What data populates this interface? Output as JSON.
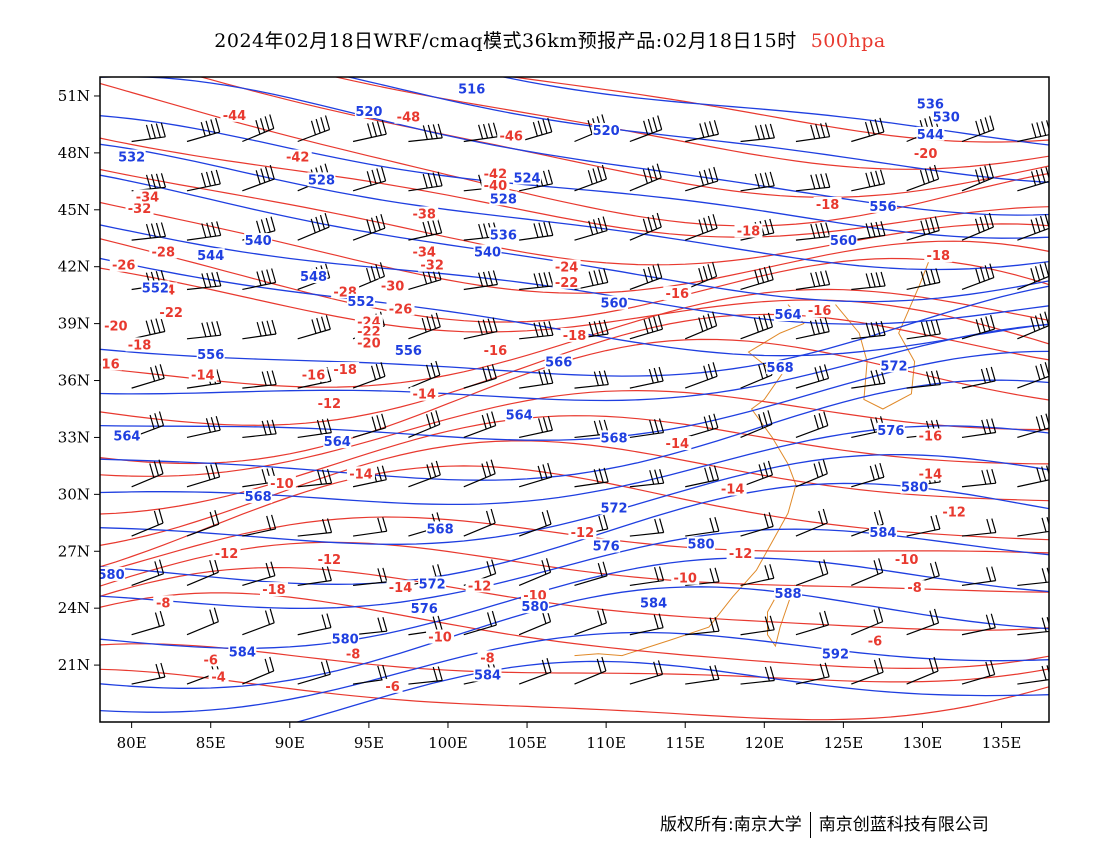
{
  "title": {
    "text": "2024年02月18日WRF/cmaq模式36km预报产品:02月18日15时",
    "level": "500hpa"
  },
  "footer": {
    "copyright": "版权所有:南京大学",
    "company": "南京创蓝科技有限公司"
  },
  "colors": {
    "height_contour": "#1f3fe0",
    "temperature_contour": "#e8392f",
    "coastline_border": "#e08a2a",
    "wind_barb": "#000000"
  },
  "map": {
    "projection": "lat-lon",
    "lon_range": [
      78,
      138
    ],
    "lat_range": [
      18,
      52
    ],
    "lon_ticks": [
      "80E",
      "85E",
      "90E",
      "95E",
      "100E",
      "105E",
      "110E",
      "115E",
      "120E",
      "125E",
      "130E",
      "135E"
    ],
    "lat_ticks": [
      "51N",
      "48N",
      "45N",
      "42N",
      "39N",
      "36N",
      "33N",
      "30N",
      "27N",
      "24N",
      "21N"
    ],
    "height_labels": [
      {
        "text": "516",
        "lon": 101.5,
        "lat": 51.3
      },
      {
        "text": "520",
        "lon": 95,
        "lat": 50.1
      },
      {
        "text": "520",
        "lon": 110,
        "lat": 49.1
      },
      {
        "text": "536",
        "lon": 130.5,
        "lat": 50.5
      },
      {
        "text": "530",
        "lon": 131.5,
        "lat": 49.8
      },
      {
        "text": "544",
        "lon": 130.5,
        "lat": 48.9
      },
      {
        "text": "532",
        "lon": 80,
        "lat": 47.7
      },
      {
        "text": "528",
        "lon": 92,
        "lat": 46.5
      },
      {
        "text": "524",
        "lon": 105,
        "lat": 46.6
      },
      {
        "text": "528",
        "lon": 103.5,
        "lat": 45.5
      },
      {
        "text": "556",
        "lon": 127.5,
        "lat": 45.1
      },
      {
        "text": "536",
        "lon": 103.5,
        "lat": 43.6
      },
      {
        "text": "540",
        "lon": 88,
        "lat": 43.3
      },
      {
        "text": "540",
        "lon": 102.5,
        "lat": 42.7
      },
      {
        "text": "560",
        "lon": 125,
        "lat": 43.3
      },
      {
        "text": "544",
        "lon": 85,
        "lat": 42.5
      },
      {
        "text": "548",
        "lon": 91.5,
        "lat": 41.4
      },
      {
        "text": "552",
        "lon": 81.5,
        "lat": 40.8
      },
      {
        "text": "552",
        "lon": 94.5,
        "lat": 40.1
      },
      {
        "text": "560",
        "lon": 110.5,
        "lat": 40.0
      },
      {
        "text": "564",
        "lon": 121.5,
        "lat": 39.4
      },
      {
        "text": "556",
        "lon": 85,
        "lat": 37.3
      },
      {
        "text": "556",
        "lon": 97.5,
        "lat": 37.5
      },
      {
        "text": "566",
        "lon": 107,
        "lat": 36.9
      },
      {
        "text": "568",
        "lon": 121,
        "lat": 36.6
      },
      {
        "text": "572",
        "lon": 128.2,
        "lat": 36.7
      },
      {
        "text": "564",
        "lon": 104.5,
        "lat": 34.1
      },
      {
        "text": "564",
        "lon": 79.7,
        "lat": 33.0
      },
      {
        "text": "564",
        "lon": 93,
        "lat": 32.7
      },
      {
        "text": "568",
        "lon": 110.5,
        "lat": 32.9
      },
      {
        "text": "576",
        "lon": 128,
        "lat": 33.3
      },
      {
        "text": "568",
        "lon": 88,
        "lat": 29.8
      },
      {
        "text": "580",
        "lon": 129.5,
        "lat": 30.3
      },
      {
        "text": "572",
        "lon": 110.5,
        "lat": 29.2
      },
      {
        "text": "568",
        "lon": 99.5,
        "lat": 28.1
      },
      {
        "text": "576",
        "lon": 110,
        "lat": 27.2
      },
      {
        "text": "580",
        "lon": 116,
        "lat": 27.3
      },
      {
        "text": "584",
        "lon": 127.5,
        "lat": 27.9
      },
      {
        "text": "572",
        "lon": 99,
        "lat": 25.2
      },
      {
        "text": "580",
        "lon": 78.7,
        "lat": 25.7
      },
      {
        "text": "576",
        "lon": 98.5,
        "lat": 23.9
      },
      {
        "text": "580",
        "lon": 105.5,
        "lat": 24.0
      },
      {
        "text": "584",
        "lon": 113,
        "lat": 24.2
      },
      {
        "text": "588",
        "lon": 121.5,
        "lat": 24.7
      },
      {
        "text": "580",
        "lon": 93.5,
        "lat": 22.3
      },
      {
        "text": "584",
        "lon": 87,
        "lat": 21.6
      },
      {
        "text": "592",
        "lon": 124.5,
        "lat": 21.5
      },
      {
        "text": "584",
        "lon": 102.5,
        "lat": 20.4
      }
    ],
    "temperature_labels": [
      {
        "text": "-44",
        "lon": 86.5,
        "lat": 49.9
      },
      {
        "text": "-48",
        "lon": 97.5,
        "lat": 49.8
      },
      {
        "text": "-46",
        "lon": 104,
        "lat": 48.8
      },
      {
        "text": "-42",
        "lon": 90.5,
        "lat": 47.7
      },
      {
        "text": "-42",
        "lon": 103,
        "lat": 46.8
      },
      {
        "text": "-40",
        "lon": 103,
        "lat": 46.2
      },
      {
        "text": "-20",
        "lon": 130.2,
        "lat": 47.9
      },
      {
        "text": "-32",
        "lon": 80.5,
        "lat": 45.0
      },
      {
        "text": "-34",
        "lon": 81,
        "lat": 45.6
      },
      {
        "text": "-38",
        "lon": 98.5,
        "lat": 44.7
      },
      {
        "text": "-18",
        "lon": 124,
        "lat": 45.2
      },
      {
        "text": "-18",
        "lon": 119,
        "lat": 43.8
      },
      {
        "text": "-28",
        "lon": 82,
        "lat": 42.7
      },
      {
        "text": "-26",
        "lon": 79.5,
        "lat": 42.0
      },
      {
        "text": "-34",
        "lon": 98.5,
        "lat": 42.7
      },
      {
        "text": "-32",
        "lon": 99,
        "lat": 42.0
      },
      {
        "text": "-24",
        "lon": 107.5,
        "lat": 41.9
      },
      {
        "text": "-22",
        "lon": 107.5,
        "lat": 41.1
      },
      {
        "text": "-18",
        "lon": 131,
        "lat": 42.5
      },
      {
        "text": "-24",
        "lon": 82,
        "lat": 40.7
      },
      {
        "text": "-28",
        "lon": 93.5,
        "lat": 40.6
      },
      {
        "text": "-30",
        "lon": 96.5,
        "lat": 40.9
      },
      {
        "text": "-22",
        "lon": 82.5,
        "lat": 39.5
      },
      {
        "text": "-26",
        "lon": 97,
        "lat": 39.7
      },
      {
        "text": "-24",
        "lon": 95,
        "lat": 39.0
      },
      {
        "text": "-22",
        "lon": 95,
        "lat": 38.5
      },
      {
        "text": "-16",
        "lon": 114.5,
        "lat": 40.5
      },
      {
        "text": "-16",
        "lon": 123.5,
        "lat": 39.6
      },
      {
        "text": "-20",
        "lon": 79,
        "lat": 38.8
      },
      {
        "text": "-18",
        "lon": 80.5,
        "lat": 37.8
      },
      {
        "text": "-20",
        "lon": 95,
        "lat": 37.9
      },
      {
        "text": "-18",
        "lon": 108,
        "lat": 38.3
      },
      {
        "text": "-16",
        "lon": 103,
        "lat": 37.5
      },
      {
        "text": "-16",
        "lon": 78.5,
        "lat": 36.8
      },
      {
        "text": "-14",
        "lon": 84.5,
        "lat": 36.2
      },
      {
        "text": "-16",
        "lon": 91.5,
        "lat": 36.2
      },
      {
        "text": "-18",
        "lon": 93.5,
        "lat": 36.5
      },
      {
        "text": "-14",
        "lon": 98.5,
        "lat": 35.2
      },
      {
        "text": "-12",
        "lon": 92.5,
        "lat": 34.7
      },
      {
        "text": "-14",
        "lon": 114.5,
        "lat": 32.6
      },
      {
        "text": "-16",
        "lon": 130.5,
        "lat": 33.0
      },
      {
        "text": "-14",
        "lon": 94.5,
        "lat": 31.0
      },
      {
        "text": "-10",
        "lon": 89.5,
        "lat": 30.5
      },
      {
        "text": "-14",
        "lon": 118,
        "lat": 30.2
      },
      {
        "text": "-14",
        "lon": 130.5,
        "lat": 31.0
      },
      {
        "text": "-12",
        "lon": 132,
        "lat": 29.0
      },
      {
        "text": "-12",
        "lon": 86,
        "lat": 26.8
      },
      {
        "text": "-12",
        "lon": 92.5,
        "lat": 26.5
      },
      {
        "text": "-12",
        "lon": 108.5,
        "lat": 27.9
      },
      {
        "text": "-12",
        "lon": 118.5,
        "lat": 26.8
      },
      {
        "text": "-10",
        "lon": 129,
        "lat": 26.5
      },
      {
        "text": "-14",
        "lon": 97,
        "lat": 25.0
      },
      {
        "text": "-12",
        "lon": 102,
        "lat": 25.1
      },
      {
        "text": "-10",
        "lon": 105.5,
        "lat": 24.6
      },
      {
        "text": "-10",
        "lon": 115,
        "lat": 25.5
      },
      {
        "text": "-18",
        "lon": 89,
        "lat": 24.9
      },
      {
        "text": "-8",
        "lon": 82,
        "lat": 24.2
      },
      {
        "text": "-8",
        "lon": 129.5,
        "lat": 25.0
      },
      {
        "text": "-10",
        "lon": 99.5,
        "lat": 22.4
      },
      {
        "text": "-6",
        "lon": 85,
        "lat": 21.2
      },
      {
        "text": "-4",
        "lon": 85.5,
        "lat": 20.3
      },
      {
        "text": "-8",
        "lon": 94,
        "lat": 21.5
      },
      {
        "text": "-8",
        "lon": 102.5,
        "lat": 21.3
      },
      {
        "text": "-6",
        "lon": 127,
        "lat": 22.2
      },
      {
        "text": "-6",
        "lon": 96.5,
        "lat": 19.8
      }
    ]
  }
}
